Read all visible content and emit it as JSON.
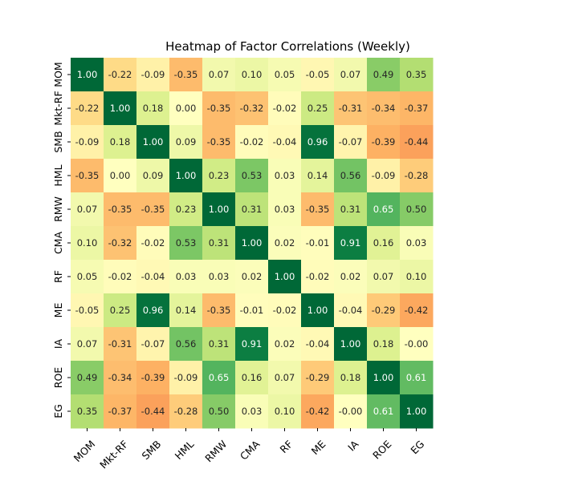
{
  "chart_data": {
    "type": "heatmap",
    "title": "Heatmap of Factor Correlations (Weekly)",
    "xlabel": "",
    "ylabel": "",
    "x_labels": [
      "MOM",
      "Mkt-RF",
      "SMB",
      "HML",
      "RMW",
      "CMA",
      "RF",
      "ME",
      "IA",
      "ROE",
      "EG"
    ],
    "y_labels": [
      "MOM",
      "Mkt-RF",
      "SMB",
      "HML",
      "RMW",
      "CMA",
      "RF",
      "ME",
      "IA",
      "ROE",
      "EG"
    ],
    "values": [
      [
        1.0,
        -0.22,
        -0.09,
        -0.35,
        0.07,
        0.1,
        0.05,
        -0.05,
        0.07,
        0.49,
        0.35
      ],
      [
        -0.22,
        1.0,
        0.18,
        0.0,
        -0.35,
        -0.32,
        -0.02,
        0.25,
        -0.31,
        -0.34,
        -0.37
      ],
      [
        -0.09,
        0.18,
        1.0,
        0.09,
        -0.35,
        -0.02,
        -0.04,
        0.96,
        -0.07,
        -0.39,
        -0.44
      ],
      [
        -0.35,
        0.0,
        0.09,
        1.0,
        0.23,
        0.53,
        0.03,
        0.14,
        0.56,
        -0.09,
        -0.28
      ],
      [
        0.07,
        -0.35,
        -0.35,
        0.23,
        1.0,
        0.31,
        0.03,
        -0.35,
        0.31,
        0.65,
        0.5
      ],
      [
        0.1,
        -0.32,
        -0.02,
        0.53,
        0.31,
        1.0,
        0.02,
        -0.01,
        0.91,
        0.16,
        0.03
      ],
      [
        0.05,
        -0.02,
        -0.04,
        0.03,
        0.03,
        0.02,
        1.0,
        -0.02,
        0.02,
        0.07,
        0.1
      ],
      [
        -0.05,
        0.25,
        0.96,
        0.14,
        -0.35,
        -0.01,
        -0.02,
        1.0,
        -0.04,
        -0.29,
        -0.42
      ],
      [
        0.07,
        -0.31,
        -0.07,
        0.56,
        0.31,
        0.91,
        0.02,
        -0.04,
        1.0,
        0.18,
        -0.0
      ],
      [
        0.49,
        -0.34,
        -0.39,
        -0.09,
        0.65,
        0.16,
        0.07,
        -0.29,
        0.18,
        1.0,
        0.61
      ],
      [
        0.35,
        -0.37,
        -0.44,
        -0.28,
        0.5,
        0.03,
        0.1,
        -0.42,
        -0.0,
        0.61,
        1.0
      ]
    ],
    "value_format": "2 decimals",
    "colormap": "RdYlGn",
    "value_range": [
      -1,
      1
    ],
    "colorbar": false,
    "annotations": true
  }
}
